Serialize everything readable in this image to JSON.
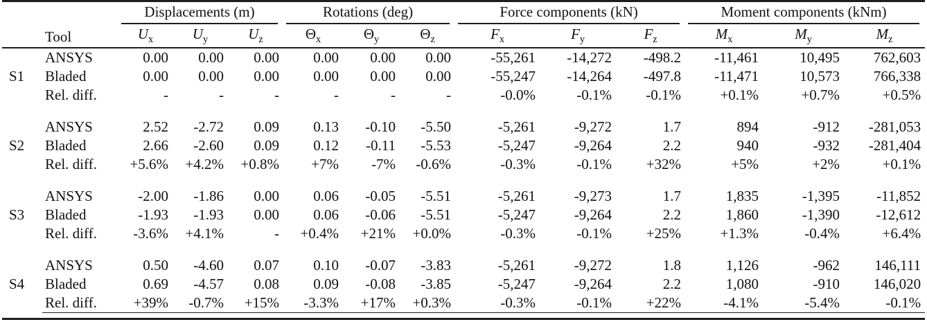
{
  "table": {
    "groups": [
      {
        "label": "Displacements (m)"
      },
      {
        "label": "Rotations (deg)"
      },
      {
        "label": "Force components (kN)"
      },
      {
        "label": "Moment components (kNm)"
      }
    ],
    "tool_header": "Tool",
    "columns": [
      {
        "base": "U",
        "sub": "x",
        "italic": true
      },
      {
        "base": "U",
        "sub": "y",
        "italic": true
      },
      {
        "base": "U",
        "sub": "z",
        "italic": true
      },
      {
        "base": "Θ",
        "sub": "x",
        "italic": false
      },
      {
        "base": "Θ",
        "sub": "y",
        "italic": false
      },
      {
        "base": "Θ",
        "sub": "z",
        "italic": false
      },
      {
        "base": "F",
        "sub": "x",
        "italic": true
      },
      {
        "base": "F",
        "sub": "y",
        "italic": true
      },
      {
        "base": "F",
        "sub": "z",
        "italic": true
      },
      {
        "base": "M",
        "sub": "x",
        "italic": true
      },
      {
        "base": "M",
        "sub": "y",
        "italic": true
      },
      {
        "base": "M",
        "sub": "z",
        "italic": true
      }
    ],
    "sections": [
      {
        "id": "S1",
        "rows": [
          {
            "tool": "ANSYS",
            "values": [
              "0.00",
              "0.00",
              "0.00",
              "0.00",
              "0.00",
              "0.00",
              "-55,261",
              "-14,272",
              "-498.2",
              "-11,461",
              "10,495",
              "762,603"
            ]
          },
          {
            "tool": "Bladed",
            "values": [
              "0.00",
              "0.00",
              "0.00",
              "0.00",
              "0.00",
              "0.00",
              "-55,247",
              "-14,264",
              "-497.8",
              "-11,471",
              "10,573",
              "766,338"
            ]
          },
          {
            "tool": "Rel. diff.",
            "values": [
              "-",
              "-",
              "-",
              "-",
              "-",
              "-",
              "-0.0%",
              "-0.1%",
              "-0.1%",
              "+0.1%",
              "+0.7%",
              "+0.5%"
            ]
          }
        ]
      },
      {
        "id": "S2",
        "rows": [
          {
            "tool": "ANSYS",
            "values": [
              "2.52",
              "-2.72",
              "0.09",
              "0.13",
              "-0.10",
              "-5.50",
              "-5,261",
              "-9,272",
              "1.7",
              "894",
              "-912",
              "-281,053"
            ]
          },
          {
            "tool": "Bladed",
            "values": [
              "2.66",
              "-2.60",
              "0.09",
              "0.12",
              "-0.11",
              "-5.53",
              "-5,247",
              "-9,264",
              "2.2",
              "940",
              "-932",
              "-281,404"
            ]
          },
          {
            "tool": "Rel. diff.",
            "values": [
              "+5.6%",
              "+4.2%",
              "+0.8%",
              "+7%",
              "-7%",
              "-0.6%",
              "-0.3%",
              "-0.1%",
              "+32%",
              "+5%",
              "+2%",
              "+0.1%"
            ]
          }
        ]
      },
      {
        "id": "S3",
        "rows": [
          {
            "tool": "ANSYS",
            "values": [
              "-2.00",
              "-1.86",
              "0.00",
              "0.06",
              "-0.05",
              "-5.51",
              "-5,261",
              "-9,273",
              "1.7",
              "1,835",
              "-1,395",
              "-11,852"
            ]
          },
          {
            "tool": "Bladed",
            "values": [
              "-1.93",
              "-1.93",
              "0.00",
              "0.06",
              "-0.06",
              "-5.51",
              "-5,247",
              "-9,264",
              "2.2",
              "1,860",
              "-1,390",
              "-12,612"
            ]
          },
          {
            "tool": "Rel. diff.",
            "values": [
              "-3.6%",
              "+4.1%",
              "-",
              "+0.4%",
              "+21%",
              "+0.0%",
              "-0.3%",
              "-0.1%",
              "+25%",
              "+1.3%",
              "-0.4%",
              "+6.4%"
            ]
          }
        ]
      },
      {
        "id": "S4",
        "rows": [
          {
            "tool": "ANSYS",
            "values": [
              "0.50",
              "-4.60",
              "0.07",
              "0.10",
              "-0.07",
              "-3.83",
              "-5,261",
              "-9,272",
              "1.8",
              "1,126",
              "-962",
              "146,111"
            ]
          },
          {
            "tool": "Bladed",
            "values": [
              "0.69",
              "-4.57",
              "0.08",
              "0.09",
              "-0.08",
              "-3.85",
              "-5,247",
              "-9,264",
              "2.2",
              "1,080",
              "-910",
              "146,020"
            ]
          },
          {
            "tool": "Rel. diff.",
            "values": [
              "+39%",
              "-0.7%",
              "+15%",
              "-3.3%",
              "+17%",
              "+0.3%",
              "-0.3%",
              "-0.1%",
              "+22%",
              "-4.1%",
              "-5.4%",
              "-0.1%"
            ]
          }
        ]
      }
    ]
  }
}
